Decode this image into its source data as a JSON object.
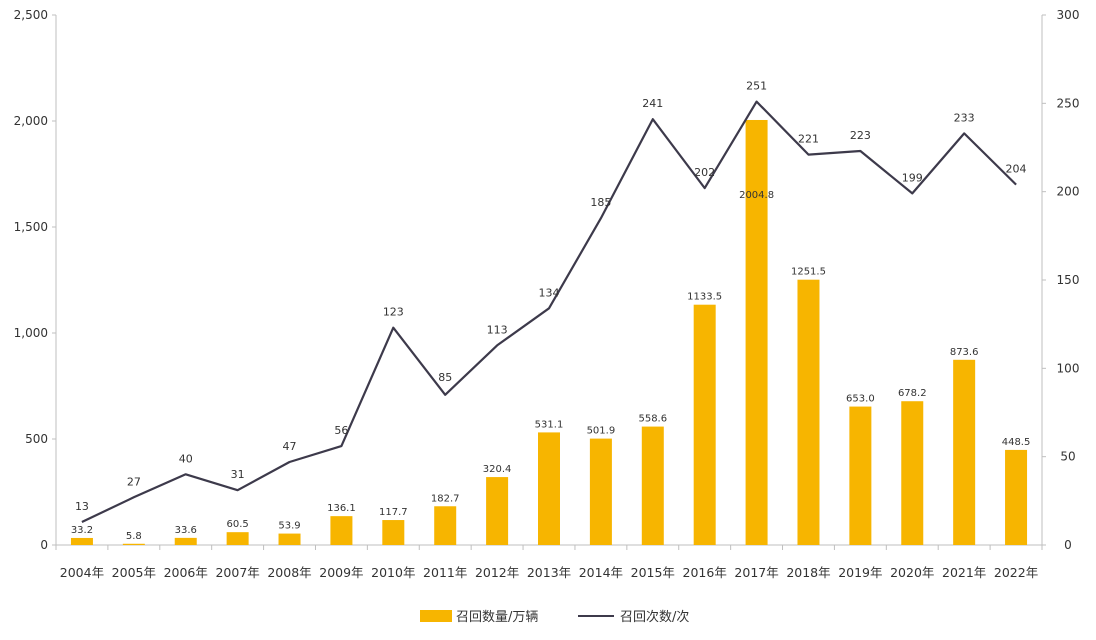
{
  "chart_data": {
    "type": "bar+line",
    "categories": [
      "2004年",
      "2005年",
      "2006年",
      "2007年",
      "2008年",
      "2009年",
      "2010年",
      "2011年",
      "2012年",
      "2013年",
      "2014年",
      "2015年",
      "2016年",
      "2017年",
      "2018年",
      "2019年",
      "2020年",
      "2021年",
      "2022年"
    ],
    "series": [
      {
        "name": "召回数量/万辆",
        "type": "bar",
        "axis": "left",
        "color": "#F7B500",
        "values": [
          33.2,
          5.8,
          33.6,
          60.5,
          53.9,
          136.1,
          117.7,
          182.7,
          320.4,
          531.1,
          501.9,
          558.6,
          1133.5,
          2004.8,
          1251.5,
          653.0,
          678.2,
          873.6,
          448.5
        ],
        "labels": [
          "33.2",
          "5.8",
          "33.6",
          "60.5",
          "53.9",
          "136.1",
          "117.7",
          "182.7",
          "320.4",
          "531.1",
          "501.9",
          "558.6",
          "1133.5",
          "2004.8",
          "1251.5",
          "653.0",
          "678.2",
          "873.6",
          "448.5"
        ]
      },
      {
        "name": "召回次数/次",
        "type": "line",
        "axis": "right",
        "color": "#3d3a4b",
        "values": [
          13,
          27,
          40,
          31,
          47,
          56,
          123,
          85,
          113,
          134,
          185,
          241,
          202,
          251,
          221,
          223,
          199,
          233,
          204
        ],
        "labels": [
          "13",
          "27",
          "40",
          "31",
          "47",
          "56",
          "123",
          "85",
          "113",
          "134",
          "185",
          "241",
          "202",
          "251",
          "221",
          "223",
          "199",
          "233",
          "204"
        ]
      }
    ],
    "y_left": {
      "range": [
        0,
        2500
      ],
      "ticks": [
        0,
        500,
        1000,
        1500,
        2000,
        2500
      ],
      "tick_labels": [
        "0",
        "500",
        "1,000",
        "1,500",
        "2,000",
        "2,500"
      ]
    },
    "y_right": {
      "range": [
        0,
        300
      ],
      "ticks": [
        0,
        50,
        100,
        150,
        200,
        250,
        300
      ],
      "tick_labels": [
        "0",
        "50",
        "100",
        "150",
        "200",
        "250",
        "300"
      ]
    },
    "grid": false,
    "legend_position": "bottom-center"
  }
}
